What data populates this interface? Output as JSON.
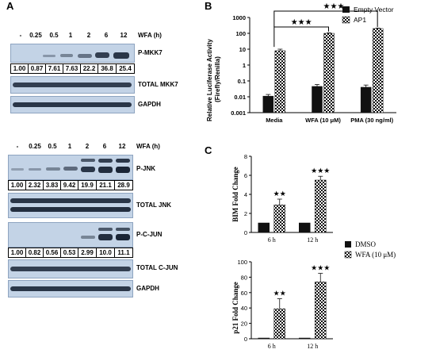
{
  "panels": {
    "a": "A",
    "b": "B",
    "c": "C"
  },
  "blot_top": {
    "lanes": [
      "-",
      "0.25",
      "0.5",
      "1",
      "2",
      "6",
      "12"
    ],
    "lanes_title": "WFA (h)",
    "rows": [
      {
        "label": "P-MKK7",
        "quant": [
          "1.00",
          "0.87",
          "7.61",
          "7.63",
          "22.2",
          "36.8",
          "25.4"
        ]
      },
      {
        "label": "TOTAL MKK7"
      },
      {
        "label": "GAPDH"
      }
    ]
  },
  "blot_bottom": {
    "lanes": [
      "-",
      "0.25",
      "0.5",
      "1",
      "2",
      "6",
      "12"
    ],
    "lanes_title": "WFA (h)",
    "rows": [
      {
        "label": "P-JNK",
        "quant": [
          "1.00",
          "2.32",
          "3.83",
          "9.42",
          "19.9",
          "21.1",
          "28.9"
        ]
      },
      {
        "label": "TOTAL JNK"
      },
      {
        "label": "P-C-JUN",
        "quant": [
          "1.00",
          "0.82",
          "0.56",
          "0.53",
          "2.99",
          "10.0",
          "11.1"
        ]
      },
      {
        "label": "TOTAL C-JUN"
      },
      {
        "label": "GAPDH"
      }
    ]
  },
  "chart_data": [
    {
      "type": "bar",
      "panel": "B",
      "categories": [
        "Media",
        "WFA (10 μM)",
        "PMA (30 ng/ml)"
      ],
      "ylabel": "Relative Luciferase Activity\n(Firefly/Renilla)",
      "yscale": "log",
      "ylim": [
        0.001,
        1000
      ],
      "yticks": [
        "0.001",
        "0.01",
        "0.1",
        "1",
        "10",
        "100",
        "1000"
      ],
      "series": [
        {
          "name": "Empty Vector",
          "values": [
            0.011,
            0.045,
            0.04
          ],
          "errors": [
            0.003,
            0.015,
            0.015
          ],
          "color": "#111111"
        },
        {
          "name": "AP1",
          "values": [
            8,
            100,
            200
          ],
          "errors": [
            2,
            8,
            15
          ],
          "pattern": "checker"
        }
      ],
      "annotations": [
        "★★★",
        "★★★"
      ],
      "legend": "top-right"
    },
    {
      "type": "bar",
      "panel": "C",
      "categories": [
        "6 h",
        "12 h"
      ],
      "ylabel": "BIM Fold Change",
      "ylim": [
        0,
        8
      ],
      "yticks": [
        "0",
        "2",
        "4",
        "6",
        "8"
      ],
      "series": [
        {
          "name": "DMSO",
          "values": [
            1,
            1
          ],
          "color": "#111111"
        },
        {
          "name": "WFA (10 μM)",
          "values": [
            2.9,
            5.5
          ],
          "errors": [
            0.6,
            0.4
          ],
          "pattern": "checker"
        }
      ],
      "annotations": [
        "★★",
        "★★★"
      ]
    },
    {
      "type": "bar",
      "panel": "C",
      "categories": [
        "6 h",
        "12 h"
      ],
      "ylabel": "p21 Fold Change",
      "ylim": [
        0,
        100
      ],
      "yticks": [
        "0",
        "20",
        "40",
        "60",
        "80",
        "100"
      ],
      "series": [
        {
          "name": "DMSO",
          "values": [
            1,
            1
          ],
          "color": "#111111"
        },
        {
          "name": "WFA (10 μM)",
          "values": [
            39,
            74
          ],
          "errors": [
            13,
            11
          ],
          "pattern": "checker"
        }
      ],
      "annotations": [
        "★★",
        "★★★"
      ],
      "legend": "top"
    }
  ]
}
